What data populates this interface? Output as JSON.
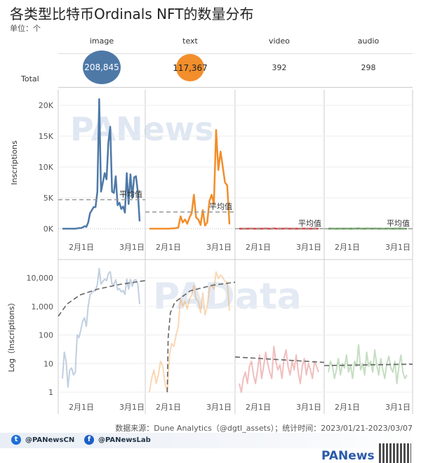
{
  "title": "各类型比特币Ordinals NFT的数量分布",
  "unit": "单位：个",
  "row_label": "Total",
  "columns": [
    {
      "name": "image",
      "total": "208,845",
      "color": "#4e79a7"
    },
    {
      "name": "text",
      "total": "117,367",
      "color": "#f28e2b"
    },
    {
      "name": "video",
      "total": "392",
      "color": "#d64545"
    },
    {
      "name": "audio",
      "total": "298",
      "color": "#59a14f"
    }
  ],
  "watermarks": [
    "PANews",
    "PAData"
  ],
  "source": "数据来源：Dune Analytics（@dgtl_assets）；统计时间：2023/01/21-2023/03/07",
  "social": {
    "twitter": "@PANewsCN",
    "facebook": "@PANewsLab"
  },
  "brand": "PANews",
  "chart_data": [
    {
      "type": "line",
      "ylabel": "Inscriptions",
      "yticks": [
        "0K",
        "5K",
        "10K",
        "15K",
        "20K"
      ],
      "ytick_values": [
        0,
        5000,
        10000,
        15000,
        20000
      ],
      "ylim": [
        0,
        21500
      ],
      "xticks": [
        "2月1日",
        "3月1日"
      ],
      "avg_label": "平均值",
      "series": [
        {
          "name": "image",
          "average": 4700,
          "values": [
            0,
            0,
            0,
            0,
            0,
            0,
            0,
            0,
            50,
            100,
            100,
            200,
            400,
            300,
            1000,
            2500,
            3000,
            3500,
            3500,
            6000,
            21000,
            6000,
            7500,
            9000,
            8000,
            14000,
            16500,
            6000,
            5800,
            8500,
            3800,
            4200,
            3200,
            3600,
            2600,
            9000,
            4000,
            8800,
            5000,
            8300,
            8500,
            6000,
            1200
          ]
        },
        {
          "name": "text",
          "average": 2700,
          "values": [
            0,
            0,
            0,
            0,
            0,
            0,
            0,
            0,
            0,
            0,
            50,
            40,
            100,
            200,
            2000,
            1000,
            1500,
            800,
            1800,
            2500,
            5500,
            1800,
            1500,
            600,
            3000,
            500,
            1000,
            4500,
            5500,
            4000,
            16000,
            9500,
            12500,
            10000,
            7500,
            7000,
            700
          ]
        },
        {
          "name": "video",
          "average": 9,
          "values": [
            2,
            1,
            3,
            5,
            2,
            8,
            12,
            4,
            2,
            6,
            20,
            3,
            8,
            25,
            10,
            5,
            3,
            40,
            12,
            6,
            9,
            3,
            15,
            30,
            8,
            4,
            12,
            6,
            20,
            5,
            2,
            8,
            15,
            4,
            10,
            6,
            3,
            12,
            8,
            5
          ]
        },
        {
          "name": "audio",
          "average": 7,
          "values": [
            5,
            12,
            8,
            3,
            6,
            15,
            4,
            10,
            7,
            20,
            5,
            9,
            3,
            12,
            8,
            45,
            6,
            10,
            4,
            25,
            8,
            12,
            5,
            30,
            9,
            4,
            15,
            6,
            3,
            10,
            18,
            7,
            5,
            12,
            2,
            8,
            20,
            5,
            3,
            4
          ]
        }
      ]
    },
    {
      "type": "line",
      "ylabel": "Log（Inscriptions）",
      "yscale": "log",
      "yticks": [
        "1",
        "10",
        "100",
        "1,000",
        "10,000"
      ],
      "ytick_values": [
        1,
        10,
        100,
        1000,
        10000
      ],
      "xticks": [
        "2月1日",
        "3月1日"
      ],
      "series": [
        {
          "name": "image",
          "values": [
            3,
            25,
            12,
            1.5,
            6,
            7,
            4,
            5,
            100,
            80,
            150,
            300,
            400,
            200,
            1000,
            2500,
            3000,
            3500,
            3500,
            6000,
            21000,
            6000,
            7500,
            9000,
            8000,
            14000,
            16500,
            6000,
            5800,
            8500,
            3800,
            4200,
            3200,
            3600,
            2600,
            9000,
            4000,
            8800,
            5000,
            8300,
            8500,
            6000,
            1200
          ],
          "trend": [
            [
              0,
              450
            ],
            [
              0.1,
              1200
            ],
            [
              0.25,
              2500
            ],
            [
              0.45,
              4000
            ],
            [
              0.7,
              5800
            ],
            [
              1,
              8000
            ]
          ]
        },
        {
          "name": "text",
          "values": [
            1,
            3,
            6,
            2,
            4,
            12,
            8,
            2,
            1,
            20,
            50,
            40,
            100,
            200,
            2000,
            1000,
            1500,
            800,
            1800,
            2500,
            5500,
            1800,
            1500,
            600,
            3000,
            500,
            1000,
            4500,
            5500,
            4000,
            16000,
            9500,
            12500,
            10000,
            7500,
            7000,
            700
          ],
          "trend": [
            [
              0.245,
              1
            ],
            [
              0.255,
              80
            ],
            [
              0.28,
              600
            ],
            [
              0.33,
              1400
            ],
            [
              0.5,
              3500
            ],
            [
              0.75,
              5500
            ],
            [
              1,
              7000
            ]
          ]
        },
        {
          "name": "video",
          "values": [
            2,
            1,
            3,
            5,
            2,
            8,
            12,
            4,
            2,
            6,
            20,
            3,
            8,
            25,
            10,
            5,
            3,
            40,
            12,
            6,
            9,
            3,
            15,
            30,
            8,
            4,
            12,
            6,
            20,
            5,
            2,
            8,
            15,
            4,
            10,
            6,
            3,
            12,
            8,
            5
          ],
          "trend": [
            [
              0,
              17
            ],
            [
              1,
              11
            ]
          ]
        },
        {
          "name": "audio",
          "values": [
            5,
            12,
            8,
            3,
            6,
            15,
            4,
            10,
            7,
            20,
            5,
            9,
            3,
            12,
            8,
            45,
            6,
            10,
            4,
            25,
            8,
            12,
            5,
            30,
            9,
            4,
            15,
            6,
            3,
            10,
            18,
            7,
            5,
            12,
            2,
            8,
            20,
            5,
            3,
            4
          ],
          "trend": [
            [
              0,
              8.5
            ],
            [
              1,
              9.5
            ]
          ]
        }
      ]
    }
  ]
}
